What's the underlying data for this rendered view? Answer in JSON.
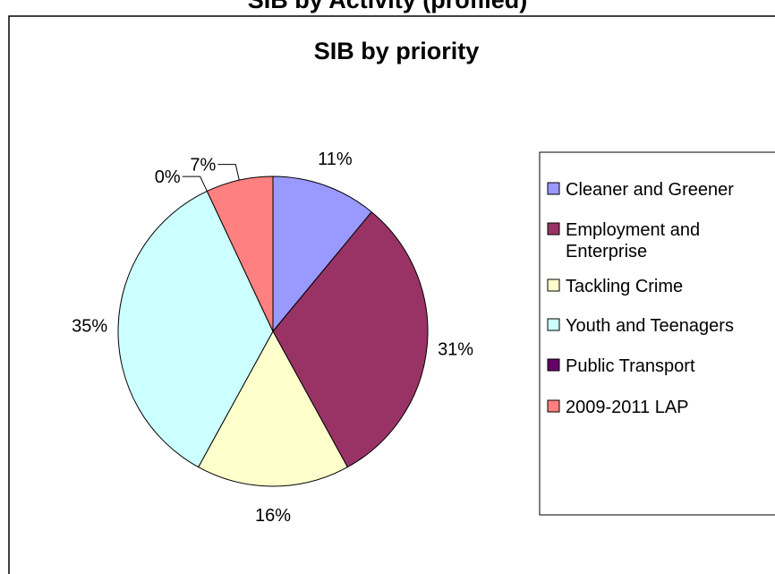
{
  "header_fragment": "SIB by Activity (profiled)",
  "chart_data": {
    "type": "pie",
    "title": "SIB by priority",
    "categories": [
      "Cleaner and Greener",
      "Employment and Enterprise",
      "Tackling Crime",
      "Youth and Teenagers",
      "Public Transport",
      "2009-2011 LAP"
    ],
    "legend_lines": [
      [
        "Cleaner and Greener"
      ],
      [
        "Employment and",
        "Enterprise"
      ],
      [
        "Tackling Crime"
      ],
      [
        "Youth and Teenagers"
      ],
      [
        "Public Transport"
      ],
      [
        "2009-2011 LAP"
      ]
    ],
    "values": [
      11,
      31,
      16,
      35,
      0,
      7
    ],
    "data_labels": [
      "11%",
      "31%",
      "16%",
      "35%",
      "0%",
      "7%"
    ],
    "colors": [
      "#9999ff",
      "#993366",
      "#ffffcc",
      "#ccffff",
      "#660066",
      "#ff8080"
    ],
    "legend": "right"
  }
}
